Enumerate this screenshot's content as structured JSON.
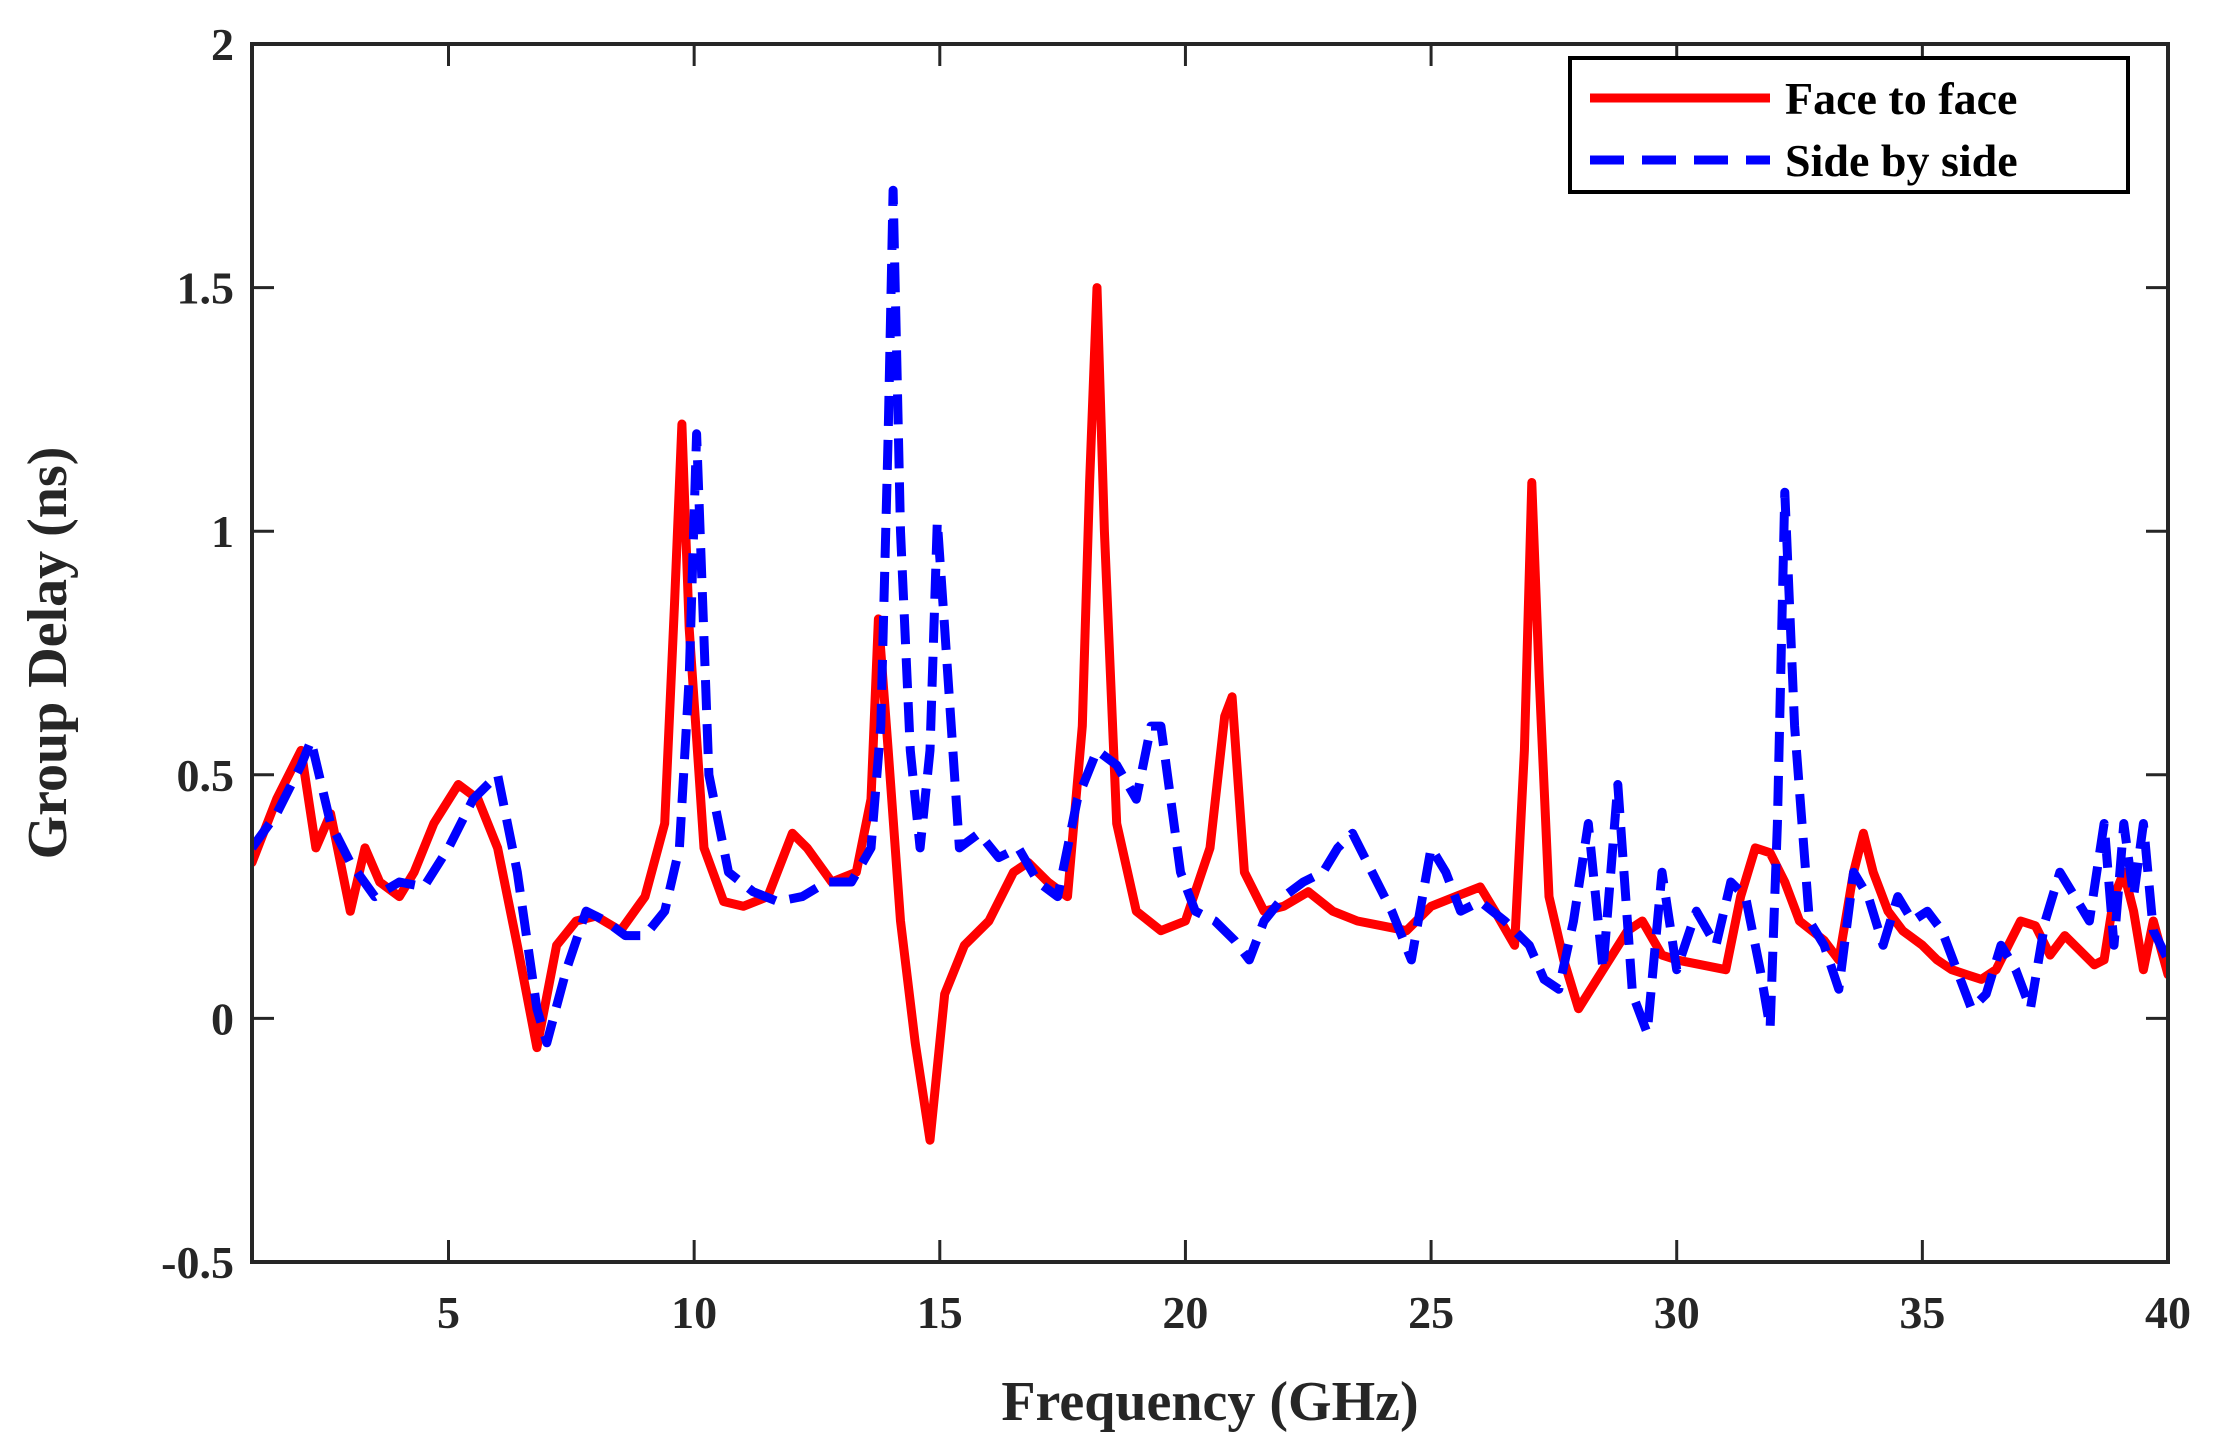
{
  "chart_data": {
    "type": "line",
    "title": "",
    "xlabel": "Frequency (GHz)",
    "ylabel": "Group Delay (ns)",
    "xlim": [
      1,
      40
    ],
    "ylim": [
      -0.5,
      2
    ],
    "xticks": [
      5,
      10,
      15,
      20,
      25,
      30,
      35,
      40
    ],
    "yticks": [
      -0.5,
      0,
      0.5,
      1,
      1.5,
      2
    ],
    "ytick_labels": [
      "-0.5",
      "0",
      "0.5",
      "1",
      "1.5",
      "2"
    ],
    "grid": false,
    "legend_position": "top-right",
    "series": [
      {
        "name": "Face to face",
        "color": "#ff0000",
        "style": "solid",
        "x": [
          1.0,
          1.5,
          2.0,
          2.3,
          2.6,
          3.0,
          3.3,
          3.6,
          4.0,
          4.3,
          4.7,
          5.2,
          5.6,
          6.0,
          6.4,
          6.8,
          7.2,
          7.6,
          8.0,
          8.5,
          9.0,
          9.4,
          9.6,
          9.75,
          9.9,
          10.2,
          10.6,
          11.0,
          11.5,
          12.0,
          12.3,
          12.8,
          13.3,
          13.6,
          13.75,
          13.95,
          14.2,
          14.5,
          14.8,
          15.1,
          15.5,
          16.0,
          16.5,
          16.8,
          17.2,
          17.6,
          17.9,
          18.05,
          18.2,
          18.35,
          18.6,
          19.0,
          19.5,
          20.0,
          20.5,
          20.8,
          20.95,
          21.2,
          21.6,
          22.0,
          22.5,
          23.0,
          23.5,
          24.0,
          24.5,
          25.0,
          25.5,
          26.0,
          26.3,
          26.7,
          26.9,
          27.05,
          27.2,
          27.4,
          27.7,
          28.0,
          28.5,
          29.0,
          29.3,
          29.7,
          30.0,
          30.5,
          31.0,
          31.3,
          31.6,
          31.9,
          32.2,
          32.5,
          33.0,
          33.3,
          33.6,
          33.8,
          34.0,
          34.3,
          34.6,
          35.0,
          35.3,
          35.6,
          35.9,
          36.2,
          36.5,
          36.8,
          37.0,
          37.3,
          37.6,
          37.9,
          38.2,
          38.5,
          38.7,
          38.9,
          39.1,
          39.3,
          39.5,
          39.7,
          40.0
        ],
        "values": [
          0.32,
          0.45,
          0.55,
          0.35,
          0.42,
          0.22,
          0.35,
          0.28,
          0.25,
          0.3,
          0.4,
          0.48,
          0.45,
          0.35,
          0.15,
          -0.06,
          0.15,
          0.2,
          0.21,
          0.18,
          0.25,
          0.4,
          0.85,
          1.22,
          0.8,
          0.35,
          0.24,
          0.23,
          0.25,
          0.38,
          0.35,
          0.28,
          0.3,
          0.45,
          0.82,
          0.55,
          0.2,
          -0.05,
          -0.25,
          0.05,
          0.15,
          0.2,
          0.3,
          0.32,
          0.28,
          0.25,
          0.6,
          1.1,
          1.5,
          1.0,
          0.4,
          0.22,
          0.18,
          0.2,
          0.35,
          0.62,
          0.66,
          0.3,
          0.22,
          0.23,
          0.26,
          0.22,
          0.2,
          0.19,
          0.18,
          0.23,
          0.25,
          0.27,
          0.22,
          0.15,
          0.55,
          1.1,
          0.7,
          0.25,
          0.12,
          0.02,
          0.1,
          0.18,
          0.2,
          0.13,
          0.12,
          0.11,
          0.1,
          0.25,
          0.35,
          0.34,
          0.28,
          0.2,
          0.16,
          0.12,
          0.3,
          0.38,
          0.3,
          0.22,
          0.18,
          0.15,
          0.12,
          0.1,
          0.09,
          0.08,
          0.1,
          0.16,
          0.2,
          0.19,
          0.13,
          0.17,
          0.14,
          0.11,
          0.12,
          0.25,
          0.3,
          0.22,
          0.1,
          0.2,
          0.09
        ]
      },
      {
        "name": "Side by side",
        "color": "#0000ff",
        "style": "dashed",
        "x": [
          1.0,
          1.5,
          2.0,
          2.2,
          2.6,
          3.0,
          3.5,
          4.0,
          4.5,
          5.0,
          5.5,
          6.0,
          6.4,
          6.8,
          7.0,
          7.4,
          7.8,
          8.2,
          8.6,
          9.0,
          9.4,
          9.7,
          9.9,
          10.05,
          10.3,
          10.7,
          11.2,
          11.7,
          12.2,
          12.7,
          13.2,
          13.6,
          13.8,
          13.95,
          14.05,
          14.2,
          14.4,
          14.6,
          14.8,
          14.95,
          15.1,
          15.4,
          15.8,
          16.2,
          16.6,
          17.0,
          17.4,
          17.8,
          18.2,
          18.6,
          19.0,
          19.3,
          19.5,
          19.7,
          19.9,
          20.2,
          20.6,
          21.0,
          21.3,
          21.6,
          22.0,
          22.4,
          22.8,
          23.1,
          23.4,
          23.8,
          24.2,
          24.6,
          25.0,
          25.3,
          25.6,
          26.0,
          26.5,
          27.0,
          27.3,
          27.6,
          27.9,
          28.2,
          28.5,
          28.8,
          29.1,
          29.4,
          29.7,
          30.0,
          30.4,
          30.8,
          31.1,
          31.4,
          31.7,
          31.9,
          32.05,
          32.2,
          32.4,
          32.7,
          33.0,
          33.3,
          33.6,
          33.9,
          34.2,
          34.5,
          34.8,
          35.1,
          35.4,
          35.7,
          36.0,
          36.3,
          36.6,
          36.9,
          37.2,
          37.5,
          37.8,
          38.1,
          38.4,
          38.7,
          38.9,
          39.1,
          39.3,
          39.5,
          39.7,
          40.0
        ],
        "values": [
          0.35,
          0.42,
          0.52,
          0.57,
          0.4,
          0.32,
          0.25,
          0.28,
          0.27,
          0.35,
          0.45,
          0.5,
          0.3,
          0.02,
          -0.05,
          0.1,
          0.22,
          0.2,
          0.17,
          0.17,
          0.22,
          0.35,
          0.7,
          1.2,
          0.5,
          0.3,
          0.26,
          0.24,
          0.25,
          0.28,
          0.28,
          0.35,
          0.6,
          1.2,
          1.7,
          1.0,
          0.55,
          0.35,
          0.55,
          1.02,
          0.8,
          0.35,
          0.38,
          0.33,
          0.35,
          0.28,
          0.25,
          0.45,
          0.55,
          0.52,
          0.45,
          0.6,
          0.6,
          0.45,
          0.3,
          0.22,
          0.2,
          0.16,
          0.12,
          0.2,
          0.25,
          0.28,
          0.3,
          0.35,
          0.38,
          0.3,
          0.22,
          0.12,
          0.35,
          0.3,
          0.22,
          0.24,
          0.2,
          0.15,
          0.08,
          0.06,
          0.2,
          0.4,
          0.1,
          0.48,
          0.05,
          -0.03,
          0.3,
          0.1,
          0.22,
          0.15,
          0.28,
          0.25,
          0.1,
          -0.02,
          0.4,
          1.08,
          0.6,
          0.2,
          0.15,
          0.06,
          0.3,
          0.25,
          0.15,
          0.25,
          0.2,
          0.22,
          0.18,
          0.1,
          0.02,
          0.05,
          0.15,
          0.1,
          0.02,
          0.2,
          0.3,
          0.25,
          0.2,
          0.4,
          0.15,
          0.4,
          0.25,
          0.4,
          0.18,
          0.12
        ]
      }
    ]
  }
}
